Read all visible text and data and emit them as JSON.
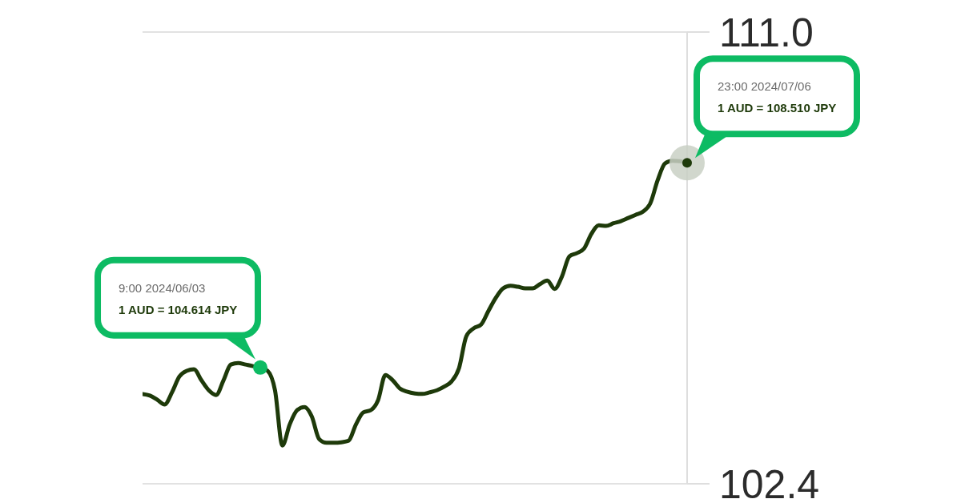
{
  "chart_data": {
    "type": "line",
    "categories": [
      null,
      null,
      null,
      null,
      null,
      null,
      null,
      null,
      null,
      null,
      null,
      null,
      null,
      null,
      null,
      null,
      null,
      null,
      null,
      null,
      null,
      null,
      null,
      null,
      null,
      null,
      null,
      null,
      null,
      null,
      null,
      null,
      null,
      null,
      null,
      null,
      null,
      null,
      null,
      null,
      null,
      null,
      null,
      null,
      null,
      null,
      null,
      null,
      null,
      null,
      null,
      null,
      null,
      null,
      null,
      null,
      null,
      null,
      null,
      null,
      null,
      null,
      null,
      null,
      null,
      null,
      null,
      null,
      null,
      null,
      null,
      null,
      null,
      null,
      null
    ],
    "values": [
      104.11,
      104.08,
      104.0,
      103.91,
      104.14,
      104.44,
      104.55,
      104.58,
      104.37,
      104.18,
      104.09,
      104.37,
      104.67,
      104.7,
      104.67,
      104.64,
      104.614,
      104.55,
      104.18,
      103.13,
      103.53,
      103.8,
      103.86,
      103.68,
      103.25,
      103.18,
      103.18,
      103.19,
      103.22,
      103.53,
      103.76,
      103.8,
      103.99,
      104.47,
      104.37,
      104.21,
      104.15,
      104.12,
      104.11,
      104.14,
      104.18,
      104.25,
      104.35,
      104.6,
      105.21,
      105.36,
      105.43,
      105.69,
      105.94,
      106.12,
      106.17,
      106.15,
      106.12,
      106.12,
      106.2,
      106.27,
      106.11,
      106.35,
      106.73,
      106.79,
      106.88,
      107.16,
      107.32,
      107.31,
      107.36,
      107.4,
      107.46,
      107.52,
      107.58,
      107.74,
      108.18,
      108.5,
      108.55,
      108.54,
      108.51
    ],
    "color": "#1e3a0a",
    "ylim": [
      102.4,
      111
    ],
    "yticks": [
      {
        "value": 111,
        "label": "111.0"
      },
      102.4
    ],
    "grid": "y",
    "tick_labels": "y",
    "annotations": [
      "9:00 2024/06/03\n1 AUD = 104.614 JPY",
      "23:00 2024/07/06\n1 AUD = 108.510 JPY"
    ]
  }
}
